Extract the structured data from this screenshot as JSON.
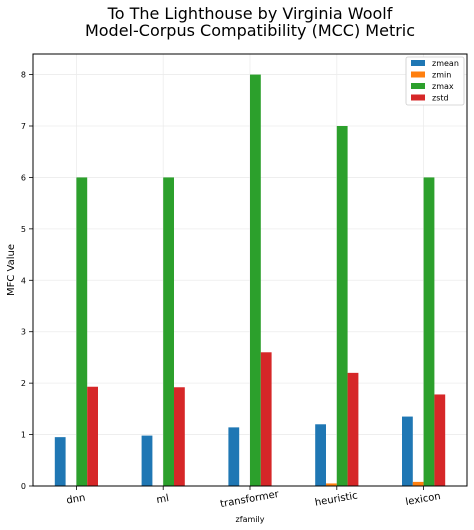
{
  "chart_data": {
    "type": "bar",
    "title": "To The Lighthouse by Virginia Woolf",
    "subtitle": "Model-Corpus Compatibility (MCC) Metric",
    "xlabel": "zfamily",
    "ylabel": "MFC Value",
    "categories": [
      "dnn",
      "ml",
      "transformer",
      "heuristic",
      "lexicon"
    ],
    "series": [
      {
        "name": "zmean",
        "color": "#1f77b4",
        "values": [
          0.95,
          0.98,
          1.14,
          1.2,
          1.35
        ]
      },
      {
        "name": "zmin",
        "color": "#ff7f0e",
        "values": [
          0,
          0,
          0,
          0.05,
          0.08
        ]
      },
      {
        "name": "zmax",
        "color": "#2ca02c",
        "values": [
          6,
          6,
          8,
          7,
          6
        ]
      },
      {
        "name": "zstd",
        "color": "#d62728",
        "values": [
          1.93,
          1.92,
          2.6,
          2.2,
          1.78
        ]
      }
    ],
    "ylim": [
      0,
      8.4
    ],
    "yticks": [
      "0",
      "1",
      "2",
      "3",
      "4",
      "5",
      "6",
      "7",
      "8"
    ],
    "grid": true,
    "legend": "top-right"
  }
}
